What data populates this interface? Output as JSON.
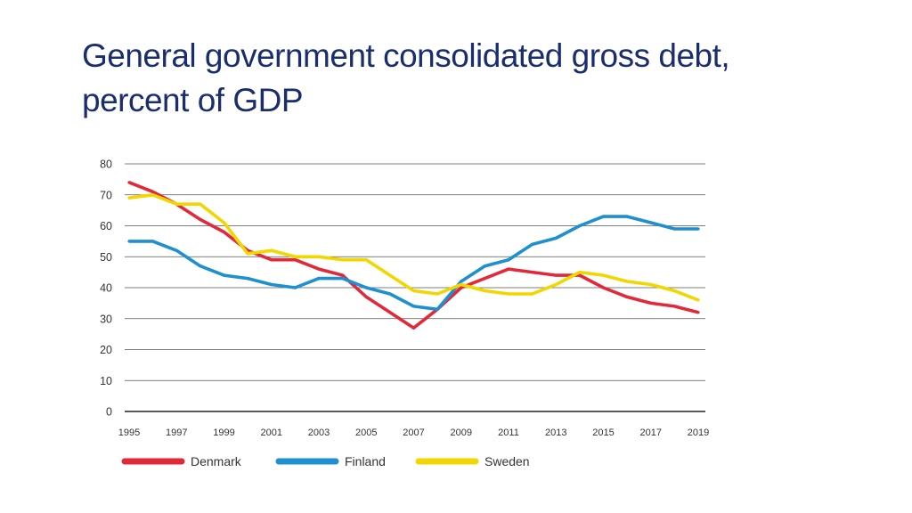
{
  "slide": {
    "title_line1": "General government consolidated gross debt,",
    "title_line2": "percent of GDP"
  },
  "chart_data": {
    "type": "line",
    "title": "General government consolidated gross debt, percent of GDP",
    "xlabel": "",
    "ylabel": "",
    "x": [
      1995,
      1996,
      1997,
      1998,
      1999,
      2000,
      2001,
      2002,
      2003,
      2004,
      2005,
      2006,
      2007,
      2008,
      2009,
      2010,
      2011,
      2012,
      2013,
      2014,
      2015,
      2016,
      2017,
      2018,
      2019
    ],
    "xticks": [
      "1995",
      "1997",
      "1999",
      "2001",
      "2003",
      "2005",
      "2007",
      "2009",
      "2011",
      "2013",
      "2015",
      "2017",
      "2019"
    ],
    "yticks": [
      "0",
      "10",
      "20",
      "30",
      "40",
      "50",
      "60",
      "70",
      "80"
    ],
    "ylim": [
      0,
      80
    ],
    "grid": true,
    "legend_position": "bottom",
    "series": [
      {
        "name": "Denmark",
        "color": "#e2293a",
        "values": [
          74,
          71,
          67,
          62,
          58,
          52,
          49,
          49,
          46,
          44,
          37,
          32,
          27,
          33,
          40,
          43,
          46,
          45,
          44,
          44,
          40,
          37,
          35,
          34,
          32
        ]
      },
      {
        "name": "Finland",
        "color": "#1e8fcf",
        "values": [
          55,
          55,
          52,
          47,
          44,
          43,
          41,
          40,
          43,
          43,
          40,
          38,
          34,
          33,
          42,
          47,
          49,
          54,
          56,
          60,
          63,
          63,
          61,
          59,
          59
        ]
      },
      {
        "name": "Sweden",
        "color": "#f2d600",
        "values": [
          69,
          70,
          67,
          67,
          61,
          51,
          52,
          50,
          50,
          49,
          49,
          44,
          39,
          38,
          41,
          39,
          38,
          38,
          41,
          45,
          44,
          42,
          41,
          39,
          36
        ]
      }
    ]
  }
}
